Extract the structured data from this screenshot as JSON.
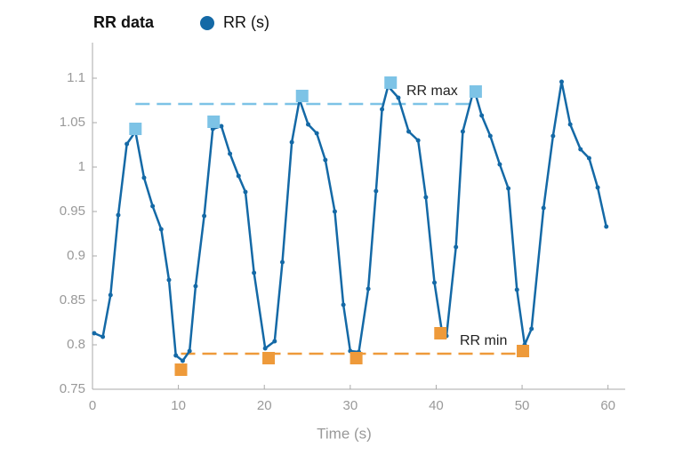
{
  "chart_data": {
    "type": "line",
    "legend_title": "RR data",
    "xlabel": "Time (s)",
    "xlim": [
      0,
      62
    ],
    "xticks": [
      0,
      10,
      20,
      30,
      40,
      50,
      60
    ],
    "ylim": [
      0.75,
      1.14
    ],
    "yticks": [
      0.75,
      0.8,
      0.85,
      0.9,
      0.95,
      1,
      1.05,
      1.1
    ],
    "grid": false,
    "series": [
      {
        "name": "RR (s)",
        "color": "#1469a6",
        "marker": "circle",
        "x": [
          0.2,
          1.2,
          2.1,
          3.0,
          4.0,
          5.0,
          6.0,
          7.0,
          8.0,
          8.9,
          9.7,
          10.5,
          11.3,
          12.0,
          13.0,
          14.0,
          15.0,
          16.0,
          17.0,
          17.8,
          18.8,
          20.1,
          21.2,
          22.1,
          23.2,
          24.1,
          25.1,
          26.1,
          27.1,
          28.2,
          29.2,
          30.0,
          31.0,
          32.1,
          33.0,
          33.7,
          34.4,
          35.6,
          36.8,
          37.9,
          38.8,
          39.8,
          40.7,
          41.2,
          42.3,
          43.1,
          44.4,
          45.3,
          46.3,
          47.4,
          48.4,
          49.4,
          50.3,
          51.1,
          52.5,
          53.6,
          54.6,
          55.6,
          56.8,
          57.8,
          58.8,
          59.8
        ],
        "values": [
          0.813,
          0.809,
          0.856,
          0.946,
          1.026,
          1.04,
          0.988,
          0.956,
          0.93,
          0.873,
          0.788,
          0.782,
          0.793,
          0.866,
          0.945,
          1.043,
          1.046,
          1.015,
          0.99,
          0.972,
          0.881,
          0.796,
          0.804,
          0.893,
          1.028,
          1.076,
          1.048,
          1.038,
          1.008,
          0.95,
          0.845,
          0.793,
          0.792,
          0.863,
          0.973,
          1.065,
          1.091,
          1.078,
          1.04,
          1.03,
          0.966,
          0.87,
          0.813,
          0.81,
          0.91,
          1.04,
          1.088,
          1.058,
          1.035,
          1.003,
          0.976,
          0.862,
          0.8,
          0.818,
          0.954,
          1.035,
          1.096,
          1.048,
          1.02,
          1.01,
          0.977,
          0.933
        ]
      },
      {
        "color": "#7dc3e6",
        "marker": "square",
        "x": [
          5.0,
          14.1,
          24.4,
          34.7,
          44.6
        ],
        "values": [
          1.043,
          1.051,
          1.08,
          1.095,
          1.085
        ]
      },
      {
        "color": "#ee9a3a",
        "marker": "square",
        "x": [
          10.3,
          20.5,
          30.7,
          40.5,
          50.1
        ],
        "values": [
          0.772,
          0.785,
          0.785,
          0.813,
          0.793
        ]
      }
    ],
    "reference_lines": [
      {
        "label": "RR max",
        "value": 1.071,
        "x": [
          5.0,
          44.6
        ],
        "color": "#7dc3e6"
      },
      {
        "label": "RR min",
        "value": 0.79,
        "x": [
          10.3,
          50.7
        ],
        "color": "#ee9a3a"
      }
    ]
  }
}
